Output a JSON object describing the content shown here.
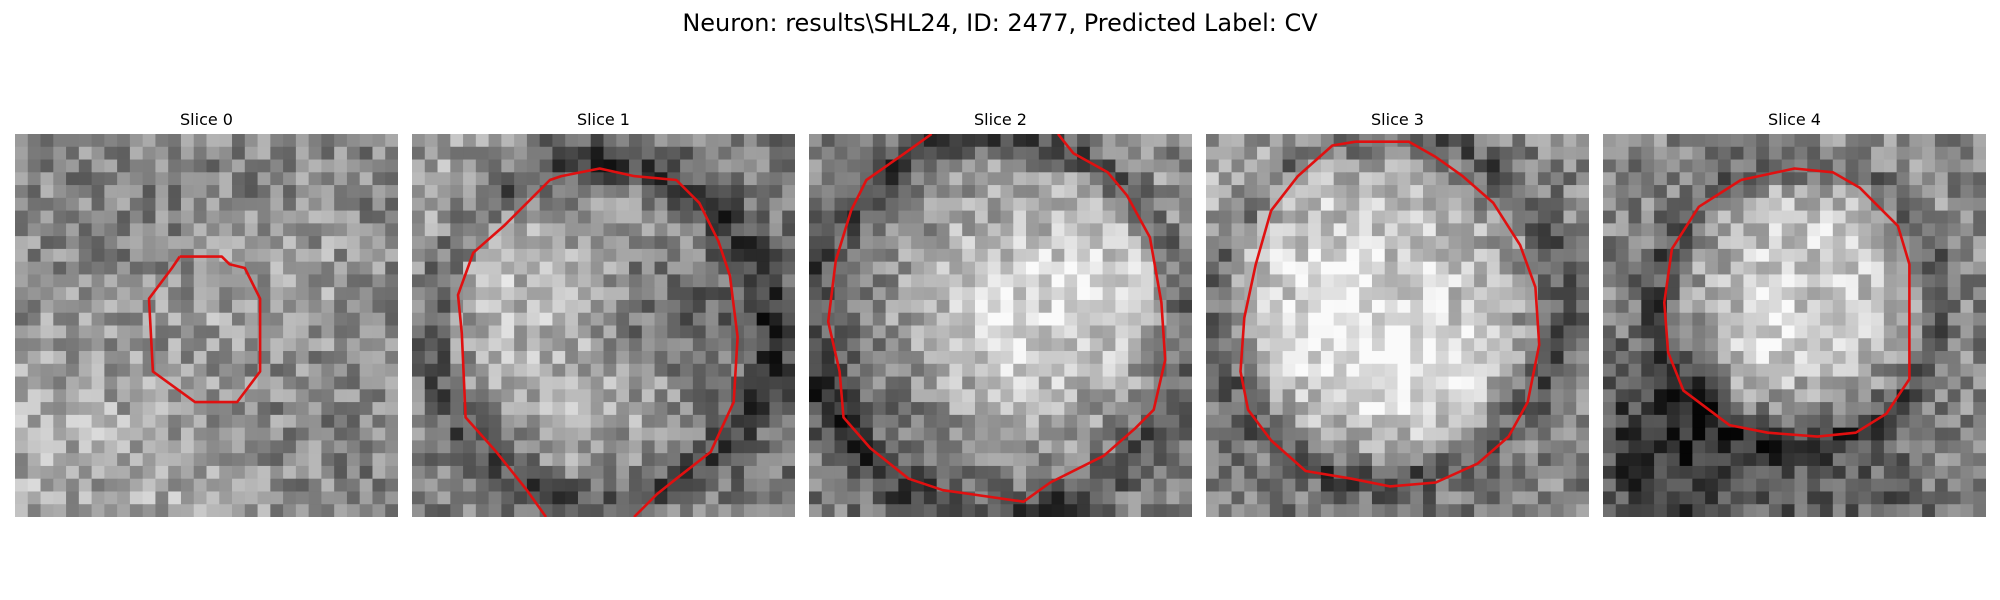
{
  "figure": {
    "title": "Neuron: results\\SHL24, ID: 2477, Predicted Label: CV",
    "contour_color": "#e01010",
    "panels": [
      {
        "label": "Slice 0",
        "seed": 11,
        "contour": [
          [
            0.43,
            0.32
          ],
          [
            0.54,
            0.32
          ],
          [
            0.56,
            0.34
          ],
          [
            0.6,
            0.35
          ],
          [
            0.64,
            0.43
          ],
          [
            0.64,
            0.62
          ],
          [
            0.58,
            0.7
          ],
          [
            0.47,
            0.7
          ],
          [
            0.36,
            0.62
          ],
          [
            0.35,
            0.43
          ],
          [
            0.41,
            0.35
          ]
        ]
      },
      {
        "label": "Slice 1",
        "seed": 23,
        "contour": [
          [
            0.35,
            1.0
          ],
          [
            0.3,
            0.93
          ],
          [
            0.22,
            0.83
          ],
          [
            0.14,
            0.74
          ],
          [
            0.13,
            0.52
          ],
          [
            0.12,
            0.42
          ],
          [
            0.16,
            0.31
          ],
          [
            0.24,
            0.24
          ],
          [
            0.32,
            0.16
          ],
          [
            0.36,
            0.12
          ],
          [
            0.39,
            0.11
          ],
          [
            0.49,
            0.09
          ],
          [
            0.58,
            0.11
          ],
          [
            0.69,
            0.12
          ],
          [
            0.75,
            0.18
          ],
          [
            0.8,
            0.28
          ],
          [
            0.83,
            0.37
          ],
          [
            0.85,
            0.53
          ],
          [
            0.84,
            0.7
          ],
          [
            0.78,
            0.83
          ],
          [
            0.69,
            0.9
          ],
          [
            0.64,
            0.94
          ],
          [
            0.61,
            0.97
          ],
          [
            0.58,
            1.0
          ]
        ]
      },
      {
        "label": "Slice 2",
        "seed": 37,
        "contour": [
          [
            0.32,
            0.0
          ],
          [
            0.25,
            0.05
          ],
          [
            0.15,
            0.12
          ],
          [
            0.11,
            0.2
          ],
          [
            0.07,
            0.33
          ],
          [
            0.05,
            0.49
          ],
          [
            0.08,
            0.62
          ],
          [
            0.09,
            0.74
          ],
          [
            0.16,
            0.82
          ],
          [
            0.26,
            0.9
          ],
          [
            0.35,
            0.93
          ],
          [
            0.42,
            0.94
          ],
          [
            0.56,
            0.96
          ],
          [
            0.63,
            0.91
          ],
          [
            0.77,
            0.84
          ],
          [
            0.85,
            0.77
          ],
          [
            0.9,
            0.72
          ],
          [
            0.93,
            0.59
          ],
          [
            0.92,
            0.44
          ],
          [
            0.89,
            0.27
          ],
          [
            0.83,
            0.16
          ],
          [
            0.78,
            0.1
          ],
          [
            0.69,
            0.05
          ],
          [
            0.65,
            0.0
          ]
        ]
      },
      {
        "label": "Slice 3",
        "seed": 51,
        "contour": [
          [
            0.39,
            0.02
          ],
          [
            0.33,
            0.03
          ],
          [
            0.24,
            0.11
          ],
          [
            0.17,
            0.2
          ],
          [
            0.13,
            0.34
          ],
          [
            0.1,
            0.48
          ],
          [
            0.09,
            0.62
          ],
          [
            0.11,
            0.72
          ],
          [
            0.17,
            0.8
          ],
          [
            0.26,
            0.88
          ],
          [
            0.38,
            0.9
          ],
          [
            0.48,
            0.92
          ],
          [
            0.6,
            0.91
          ],
          [
            0.71,
            0.86
          ],
          [
            0.79,
            0.79
          ],
          [
            0.84,
            0.7
          ],
          [
            0.87,
            0.55
          ],
          [
            0.86,
            0.4
          ],
          [
            0.82,
            0.29
          ],
          [
            0.75,
            0.18
          ],
          [
            0.67,
            0.11
          ],
          [
            0.6,
            0.06
          ],
          [
            0.53,
            0.02
          ],
          [
            0.46,
            0.02
          ]
        ]
      },
      {
        "label": "Slice 4",
        "seed": 63,
        "contour": [
          [
            0.36,
            0.12
          ],
          [
            0.5,
            0.09
          ],
          [
            0.6,
            0.1
          ],
          [
            0.67,
            0.14
          ],
          [
            0.71,
            0.18
          ],
          [
            0.77,
            0.24
          ],
          [
            0.8,
            0.34
          ],
          [
            0.8,
            0.52
          ],
          [
            0.8,
            0.64
          ],
          [
            0.74,
            0.73
          ],
          [
            0.66,
            0.78
          ],
          [
            0.56,
            0.79
          ],
          [
            0.43,
            0.78
          ],
          [
            0.33,
            0.76
          ],
          [
            0.21,
            0.67
          ],
          [
            0.17,
            0.57
          ],
          [
            0.16,
            0.44
          ],
          [
            0.18,
            0.3
          ],
          [
            0.25,
            0.19
          ]
        ]
      }
    ]
  }
}
